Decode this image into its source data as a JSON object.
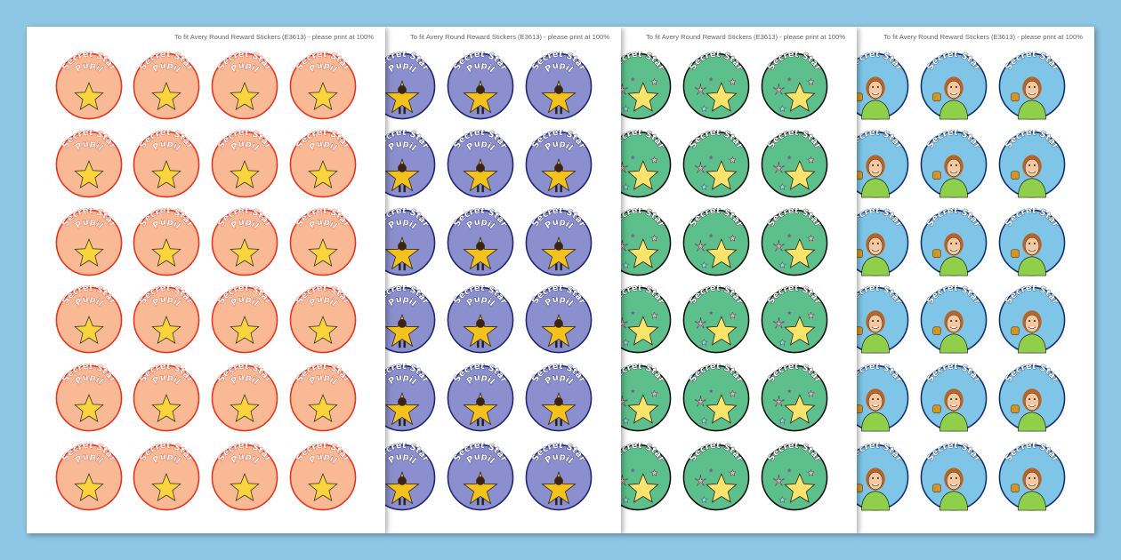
{
  "sheets": [
    {
      "note": "To fit Avery Round Reward Stickers (E3613) - please print at 100%",
      "line1": "Secret Star",
      "line2": "Pupil",
      "design": "star",
      "fill": "#f9b994",
      "stroke": "#e8321c",
      "text_stroke": "#e8321c",
      "rows": 6,
      "cols": 4
    },
    {
      "note": "To fit Avery Round Reward Stickers (E3613) - please print at 100%",
      "line1": "Secret Star",
      "line2": "Pupil",
      "design": "star-character",
      "fill": "#8c8fcd",
      "stroke": "#1d2574",
      "text_stroke": "#1d2574",
      "rows": 6,
      "cols": 4
    },
    {
      "note": "To fit Avery Round Reward Stickers (E3613) - please print at 100%",
      "line1": "Secret Star",
      "line2": "",
      "design": "star-sparkles",
      "fill": "#5dbf8b",
      "stroke": "#111111",
      "text_stroke": "#111111",
      "rows": 6,
      "cols": 4
    },
    {
      "note": "To fit Avery Round Reward Stickers (E3613) - please print at 100%",
      "line1": "Secret Star",
      "line2": "",
      "design": "child-with-trophy",
      "fill": "#7ec5e7",
      "stroke": "#0f2f70",
      "text_stroke": "#0f2f70",
      "rows": 6,
      "cols": 4
    }
  ]
}
